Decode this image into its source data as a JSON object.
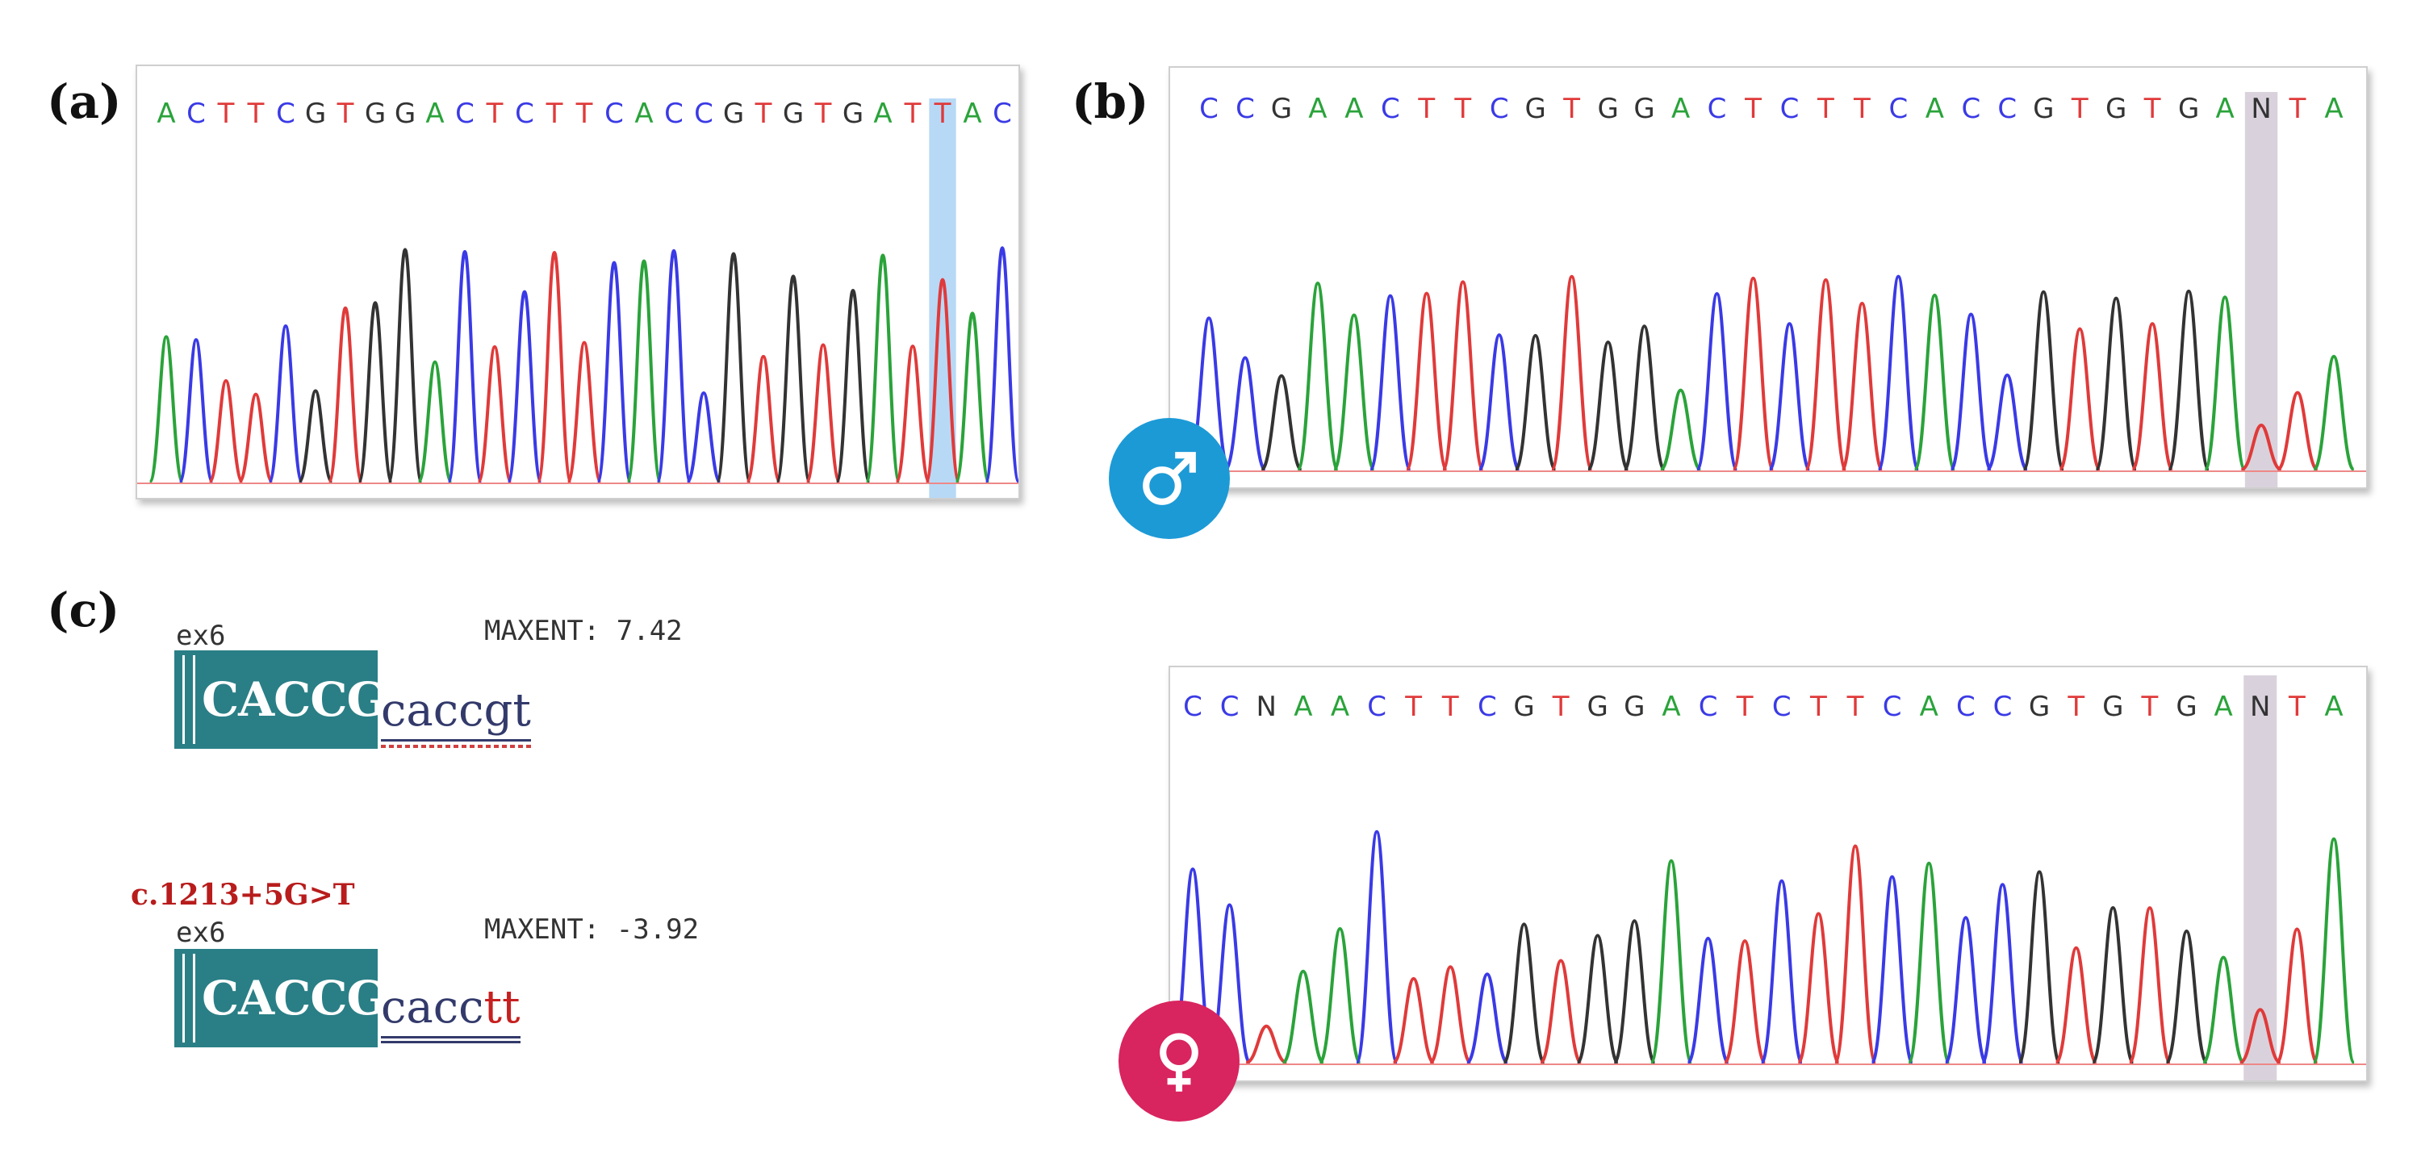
{
  "panels": {
    "a": {
      "label": "(a)",
      "sequence": "ACTTCGTGGACTCTTCACCGTGTGATTAC",
      "highlight_index": 26,
      "highlight_marker": ")"
    },
    "b": {
      "label": "(b)",
      "male": {
        "sequence": "CCGAACTTCGTGGACTCTTCACCGTGTGANTA",
        "symbol": "male-symbol-icon"
      },
      "female": {
        "sequence": "CCNAACTTCGTGGACTCTTCACCGTGTGANTA",
        "symbol": "female-symbol-icon"
      }
    },
    "c": {
      "label": "(c)",
      "wildtype": {
        "exon": "ex6",
        "maxent": "MAXENT: 7.42",
        "exon_seq": "CACCGT",
        "intron_seq": "caccgt"
      },
      "variant": {
        "name": "c.1213+5G>T",
        "exon": "ex6",
        "maxent": "MAXENT: -3.92",
        "exon_seq": "CACCGT",
        "intron_prefix": "cacc",
        "intron_mut": "tt"
      }
    }
  },
  "colors": {
    "A": "#2aa33a",
    "C": "#3a3ae6",
    "G": "#333333",
    "T": "#e03a3a",
    "male_badge": "#1c9ad6",
    "female_badge": "#d8245f",
    "exon_box": "#2a7f86"
  }
}
